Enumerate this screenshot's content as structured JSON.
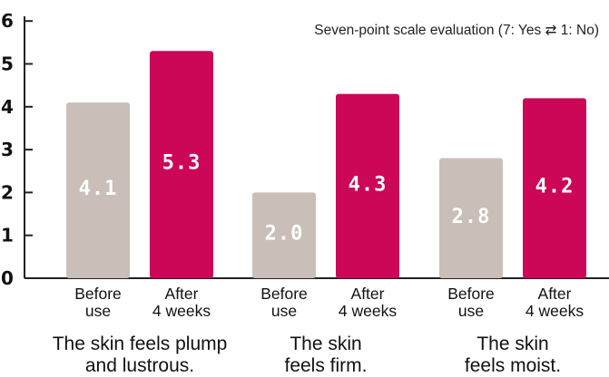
{
  "chart_data": {
    "type": "bar",
    "note": "Seven-point scale evaluation (7: Yes ⇄ 1: No)",
    "yticks": [
      "0",
      "1",
      "2",
      "3",
      "4",
      "5",
      "6"
    ],
    "ylim": [
      0,
      6
    ],
    "grid": false,
    "bar_categories": [
      [
        "Before",
        "use"
      ],
      [
        "After",
        "4 weeks"
      ]
    ],
    "colors": {
      "before": "#c9bfb8",
      "after": "#cc0757",
      "axis": "#222222"
    },
    "groups": [
      {
        "label": [
          "The skin feels plump",
          "and lustrous."
        ],
        "values": [
          4.1,
          5.3
        ],
        "value_labels": [
          "4.1",
          "5.3"
        ]
      },
      {
        "label": [
          "The skin",
          "feels firm."
        ],
        "values": [
          2.0,
          4.3
        ],
        "value_labels": [
          "2.0",
          "4.3"
        ]
      },
      {
        "label": [
          "The skin",
          "feels moist."
        ],
        "values": [
          2.8,
          4.2
        ],
        "value_labels": [
          "2.8",
          "4.2"
        ]
      }
    ]
  }
}
